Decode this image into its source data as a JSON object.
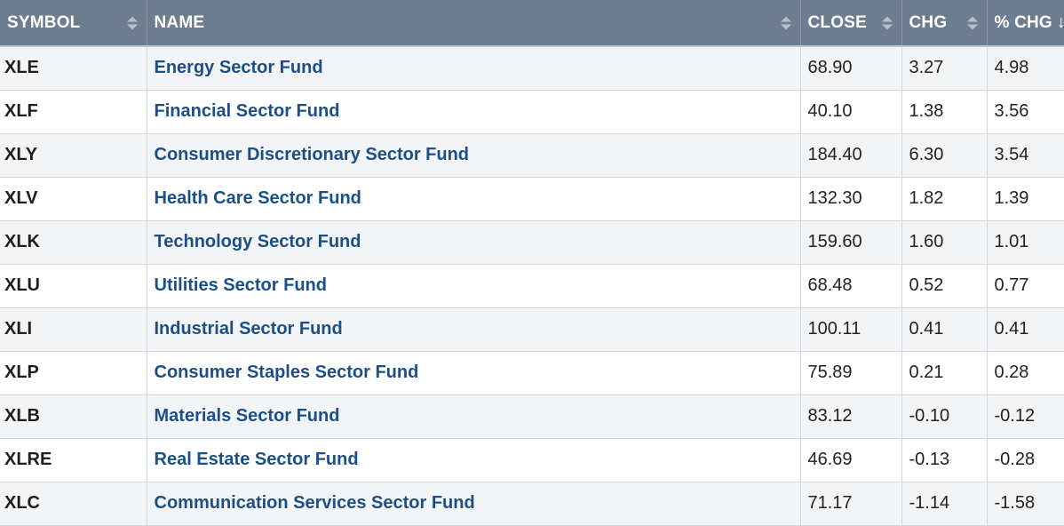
{
  "table": {
    "headers": {
      "symbol": "SYMBOL",
      "name": "NAME",
      "close": "CLOSE",
      "chg": "CHG",
      "pct_chg": "% CHG",
      "sorted_desc_indicator": "↓"
    },
    "rows": [
      {
        "symbol": "XLE",
        "name": "Energy Sector Fund",
        "close": "68.90",
        "chg": "3.27",
        "pct_chg": "4.98"
      },
      {
        "symbol": "XLF",
        "name": "Financial Sector Fund",
        "close": "40.10",
        "chg": "1.38",
        "pct_chg": "3.56"
      },
      {
        "symbol": "XLY",
        "name": "Consumer Discretionary Sector Fund",
        "close": "184.40",
        "chg": "6.30",
        "pct_chg": "3.54"
      },
      {
        "symbol": "XLV",
        "name": "Health Care Sector Fund",
        "close": "132.30",
        "chg": "1.82",
        "pct_chg": "1.39"
      },
      {
        "symbol": "XLK",
        "name": "Technology Sector Fund",
        "close": "159.60",
        "chg": "1.60",
        "pct_chg": "1.01"
      },
      {
        "symbol": "XLU",
        "name": "Utilities Sector Fund",
        "close": "68.48",
        "chg": "0.52",
        "pct_chg": "0.77"
      },
      {
        "symbol": "XLI",
        "name": "Industrial Sector Fund",
        "close": "100.11",
        "chg": "0.41",
        "pct_chg": "0.41"
      },
      {
        "symbol": "XLP",
        "name": "Consumer Staples Sector Fund",
        "close": "75.89",
        "chg": "0.21",
        "pct_chg": "0.28"
      },
      {
        "symbol": "XLB",
        "name": "Materials Sector Fund",
        "close": "83.12",
        "chg": "-0.10",
        "pct_chg": "-0.12"
      },
      {
        "symbol": "XLRE",
        "name": "Real Estate Sector Fund",
        "close": "46.69",
        "chg": "-0.13",
        "pct_chg": "-0.28"
      },
      {
        "symbol": "XLC",
        "name": "Communication Services Sector Fund",
        "close": "71.17",
        "chg": "-1.14",
        "pct_chg": "-1.58"
      }
    ]
  },
  "colors": {
    "header_bg": "#6e7d8f",
    "link": "#1b4f86",
    "row_alt": "#f2f4f6"
  }
}
